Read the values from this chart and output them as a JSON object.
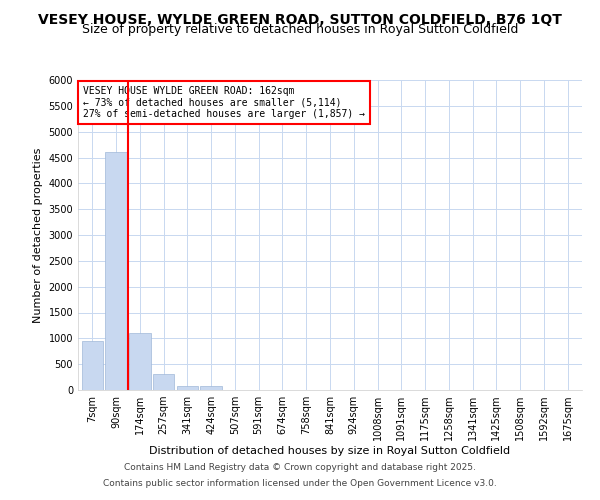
{
  "title1": "VESEY HOUSE, WYLDE GREEN ROAD, SUTTON COLDFIELD, B76 1QT",
  "title2": "Size of property relative to detached houses in Royal Sutton Coldfield",
  "xlabel": "Distribution of detached houses by size in Royal Sutton Coldfield",
  "ylabel": "Number of detached properties",
  "annotation_line1": "VESEY HOUSE WYLDE GREEN ROAD: 162sqm",
  "annotation_line2": "← 73% of detached houses are smaller (5,114)",
  "annotation_line3": "27% of semi-detached houses are larger (1,857) →",
  "footer_line1": "Contains HM Land Registry data © Crown copyright and database right 2025.",
  "footer_line2": "Contains public sector information licensed under the Open Government Licence v3.0.",
  "categories": [
    "7sqm",
    "90sqm",
    "174sqm",
    "257sqm",
    "341sqm",
    "424sqm",
    "507sqm",
    "591sqm",
    "674sqm",
    "758sqm",
    "841sqm",
    "924sqm",
    "1008sqm",
    "1091sqm",
    "1175sqm",
    "1258sqm",
    "1341sqm",
    "1425sqm",
    "1508sqm",
    "1592sqm",
    "1675sqm"
  ],
  "values": [
    950,
    4600,
    1100,
    310,
    80,
    80,
    0,
    0,
    0,
    0,
    0,
    0,
    0,
    0,
    0,
    0,
    0,
    0,
    0,
    0,
    0
  ],
  "bar_color": "#c8d8f0",
  "vline_color": "red",
  "vline_x_index": 1.5,
  "ylim": [
    0,
    6000
  ],
  "yticks": [
    0,
    500,
    1000,
    1500,
    2000,
    2500,
    3000,
    3500,
    4000,
    4500,
    5000,
    5500,
    6000
  ],
  "grid_color": "#c8d8f0",
  "background_color": "#ffffff",
  "plot_bg_color": "#ffffff",
  "annotation_box_color": "white",
  "annotation_box_edgecolor": "red",
  "title_fontsize": 10,
  "subtitle_fontsize": 9,
  "tick_fontsize": 7,
  "label_fontsize": 8,
  "annotation_fontsize": 7,
  "footer_fontsize": 6.5
}
